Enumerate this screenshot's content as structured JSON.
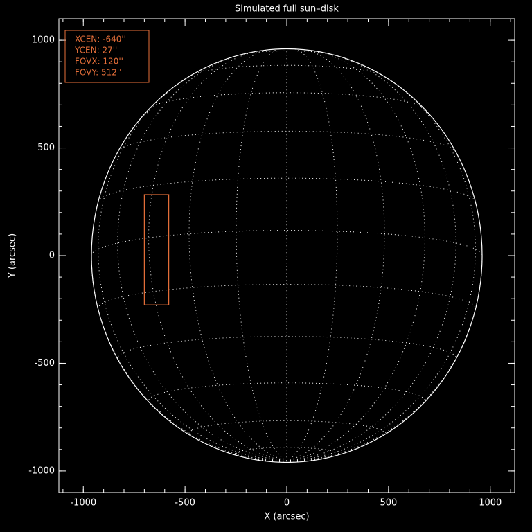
{
  "chart_data": {
    "type": "sun-disk",
    "title": "Simulated full sun–disk",
    "xlabel": "X (arcsec)",
    "ylabel": "Y (arcsec)",
    "xlim": [
      -1120,
      1120
    ],
    "ylim": [
      -1100,
      1100
    ],
    "xticks": [
      -1000,
      -500,
      0,
      500,
      1000
    ],
    "yticks": [
      -1000,
      -500,
      0,
      500,
      1000
    ],
    "minor_tick_step": 100,
    "solar_radius": 960,
    "b0_deg": -7,
    "grid_step_deg": 15,
    "fov": {
      "xcen": -640,
      "ycen": 27,
      "fovx": 120,
      "fovy": 512,
      "color": "#e8703a"
    },
    "annotations": [
      "XCEN:  -640''",
      "YCEN:  27''",
      "FOVX:  120''",
      "FOVY:  512''"
    ]
  }
}
